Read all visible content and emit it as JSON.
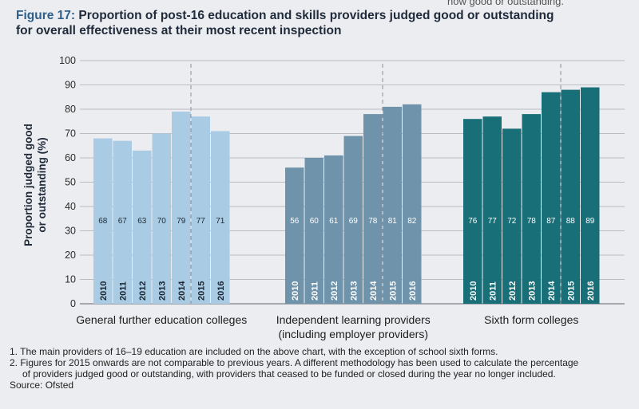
{
  "header_fragment": "how good or outstanding.",
  "figure": {
    "label": "Figure 17:",
    "title_line1": "Proportion of post-16 education and skills providers judged good or outstanding",
    "title_line2": "for overall effectiveness at their most recent inspection"
  },
  "chart_data": {
    "type": "bar",
    "ylabel_line1": "Proportion judged good",
    "ylabel_line2": "or outstanding (%)",
    "ylim": [
      0,
      100
    ],
    "yticks": [
      0,
      10,
      20,
      30,
      40,
      50,
      60,
      70,
      80,
      90,
      100
    ],
    "grid": true,
    "years": [
      "2010",
      "2011",
      "2012",
      "2013",
      "2014",
      "2015",
      "2016"
    ],
    "groups": [
      {
        "name": "General further education colleges",
        "name_line2": "",
        "values": [
          68,
          67,
          63,
          70,
          79,
          77,
          71
        ],
        "color": "#a9cbe4"
      },
      {
        "name": "Independent learning providers",
        "name_line2": "(including employer providers)",
        "values": [
          56,
          60,
          61,
          69,
          78,
          81,
          82
        ],
        "color": "#6e93ab"
      },
      {
        "name": "Sixth form colleges",
        "name_line2": "",
        "values": [
          76,
          77,
          72,
          78,
          87,
          88,
          89
        ],
        "color": "#196f78"
      }
    ]
  },
  "notes": {
    "note1": "1. The main providers of 16–19 education are included on the above chart, with the exception of school sixth forms.",
    "note2a": "2. Figures for 2015 onwards are not comparable to previous years. A different methodology has been used to calculate the percentage",
    "note2b": "of providers judged good or outstanding, with providers that ceased to be funded or closed during the year no longer included.",
    "source": "Source: Ofsted"
  }
}
